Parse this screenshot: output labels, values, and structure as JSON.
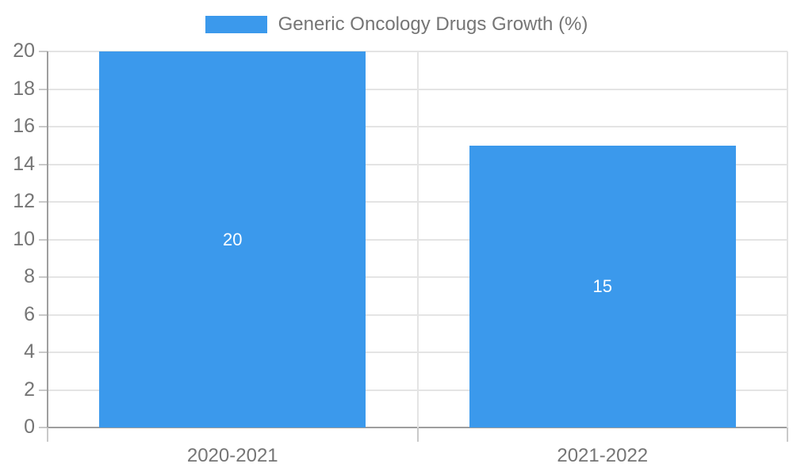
{
  "legend": {
    "label": "Generic Oncology Drugs Growth (%)"
  },
  "chart_data": {
    "type": "bar",
    "title": "",
    "xlabel": "",
    "ylabel": "",
    "categories": [
      "2020-2021",
      "2021-2022"
    ],
    "series": [
      {
        "name": "Generic Oncology Drugs Growth (%)",
        "values": [
          20,
          15
        ]
      }
    ],
    "bar_value_labels": [
      "20",
      "15"
    ],
    "ylim": [
      0,
      20
    ],
    "ytick_step": 2,
    "ytick_labels": [
      "0",
      "2",
      "4",
      "6",
      "8",
      "10",
      "12",
      "14",
      "16",
      "18",
      "20"
    ],
    "grid": true,
    "legend_position": "top",
    "colors": {
      "bar": "#3B99EC",
      "bar_value_text": "#FFFFFF",
      "axis_line": "#9E9E9E",
      "gridline": "#E4E4E4",
      "tick_stub": "#C9C9C9",
      "tick_text": "#757575",
      "legend_text": "#757575"
    }
  }
}
